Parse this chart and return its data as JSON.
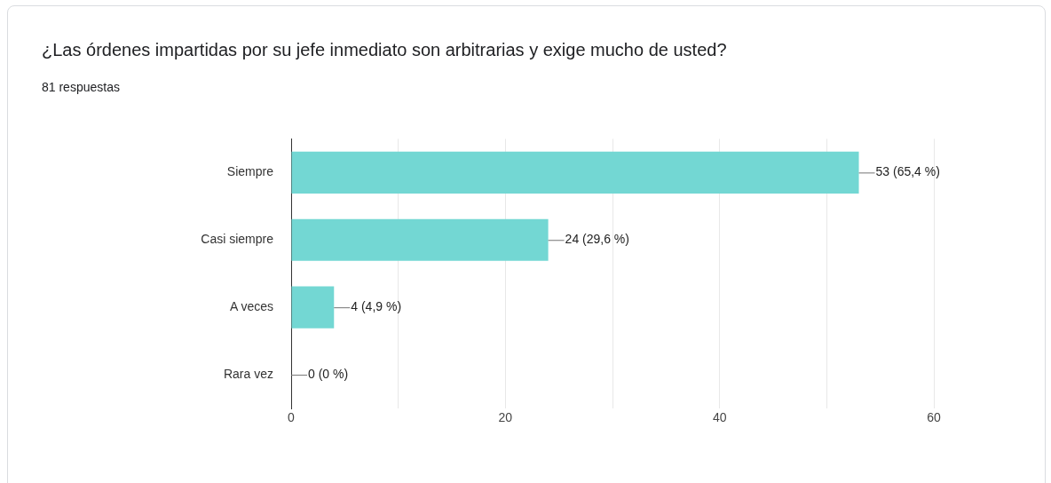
{
  "chart_data": {
    "type": "bar",
    "orientation": "horizontal",
    "title": "¿Las órdenes impartidas por su jefe inmediato son arbitrarias y exige mucho de usted?",
    "subtitle": "81 respuestas",
    "categories": [
      "Siempre",
      "Casi siempre",
      "A veces",
      "Rara vez"
    ],
    "values": [
      53,
      24,
      4,
      0
    ],
    "value_labels": [
      "53 (65,4 %)",
      "24 (29,6 %)",
      "4 (4,9 %)",
      "0 (0 %)"
    ],
    "color": "#73d7d3",
    "xlim": [
      0,
      60
    ],
    "xticks": [
      0,
      {
        "value": 10,
        "label": null
      },
      20,
      {
        "value": 30,
        "label": null
      },
      40,
      {
        "value": 50,
        "label": null
      },
      60
    ],
    "grid": "x",
    "legend": false
  }
}
